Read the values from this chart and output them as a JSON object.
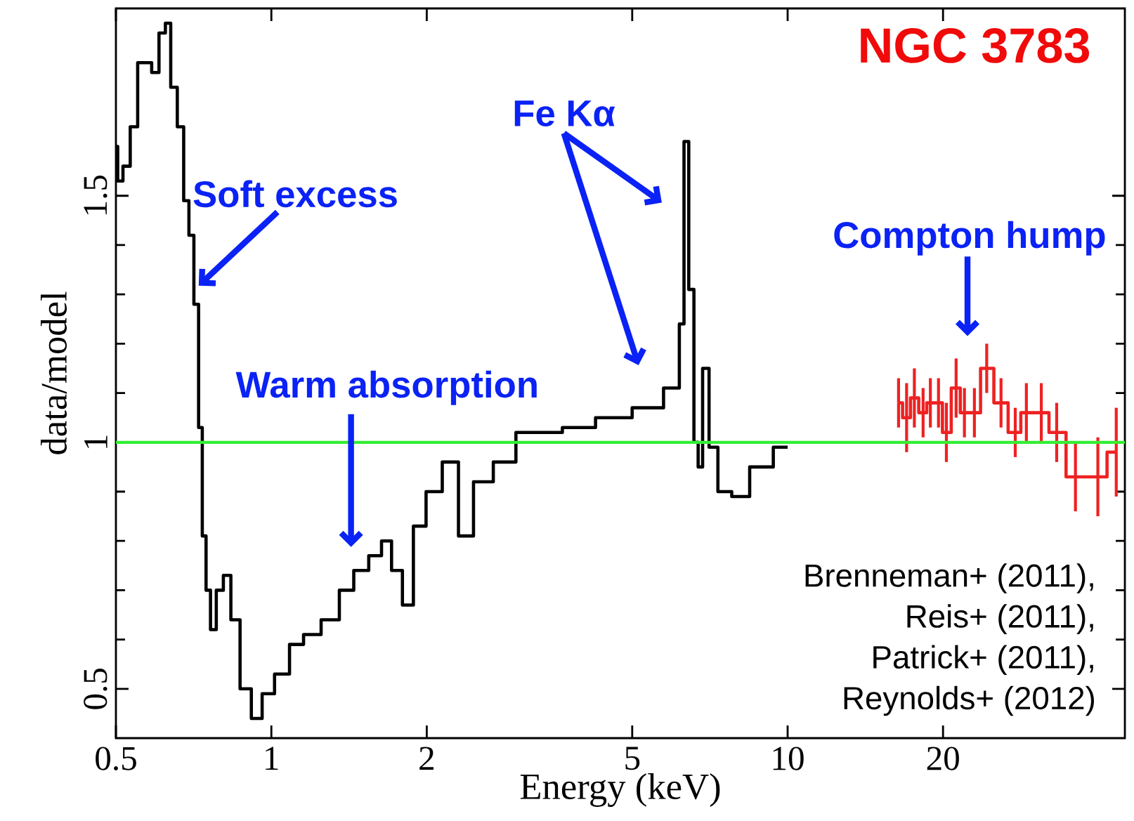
{
  "chart_data": {
    "type": "step",
    "xlabel": "Energy (keV)",
    "ylabel": "data/model",
    "log": "x",
    "xlim": [
      0.5,
      45
    ],
    "ylim": [
      0.4,
      1.88
    ],
    "xticks": [
      0.5,
      1,
      2,
      5,
      10,
      20
    ],
    "yticks": [
      0.5,
      1,
      1.5
    ],
    "series": [
      {
        "color": "#000000",
        "x": [
          0.5,
          0.508,
          0.524,
          0.542,
          0.56,
          0.578,
          0.595,
          0.617,
          0.63,
          0.647,
          0.668,
          0.685,
          0.7,
          0.716,
          0.73,
          0.74,
          0.755,
          0.77,
          0.795,
          0.82,
          0.85,
          0.89,
          0.94,
          0.98,
          1.05,
          1.12,
          1.19,
          1.31,
          1.4,
          1.49,
          1.6,
          1.67,
          1.75,
          1.84,
          1.93,
          2.06,
          2.23,
          2.38,
          2.55,
          2.84,
          3.12,
          3.43,
          3.91,
          4.61,
          5.42,
          6.1,
          6.24,
          6.36,
          6.51,
          6.66,
          6.76,
          6.93,
          7.16,
          7.5,
          8.1,
          8.8,
          10.0
        ],
        "values": [
          1.6,
          1.53,
          1.56,
          1.64,
          1.77,
          1.77,
          1.75,
          1.83,
          1.85,
          1.72,
          1.64,
          1.49,
          1.42,
          1.28,
          1.03,
          0.81,
          0.7,
          0.62,
          0.7,
          0.73,
          0.64,
          0.5,
          0.44,
          0.49,
          0.53,
          0.59,
          0.61,
          0.64,
          0.7,
          0.74,
          0.77,
          0.8,
          0.74,
          0.67,
          0.83,
          0.9,
          0.96,
          0.81,
          0.92,
          0.96,
          1.02,
          1.02,
          1.03,
          1.05,
          1.07,
          1.11,
          1.24,
          1.61,
          1.31,
          1.0,
          0.95,
          1.15,
          0.99,
          0.9,
          0.89,
          0.95,
          0.99
        ]
      },
      {
        "color": "#ee2222",
        "x": [
          16.4,
          17.0,
          17.6,
          18.3,
          18.9,
          19.6,
          20.3,
          21.2,
          22.0,
          23.0,
          24.3,
          25.9,
          27.6,
          29.0,
          31.0,
          33.2,
          36.1,
          39.9,
          43.3
        ],
        "values": [
          1.08,
          1.05,
          1.09,
          1.06,
          1.08,
          1.08,
          1.02,
          1.11,
          1.06,
          1.06,
          1.15,
          1.08,
          1.02,
          1.06,
          1.06,
          1.02,
          0.93,
          0.93,
          0.98
        ],
        "errors": [
          0.05,
          0.07,
          0.06,
          0.05,
          0.05,
          0.05,
          0.06,
          0.06,
          0.05,
          0.05,
          0.05,
          0.05,
          0.05,
          0.06,
          0.06,
          0.06,
          0.07,
          0.08,
          0.09
        ]
      }
    ],
    "ref_lines": [
      {
        "axis": "y",
        "value": 1,
        "color": "#33ee33"
      }
    ],
    "annotations": [
      "NGC 3783",
      "Soft excess",
      "Warm absorption",
      "Fe Kα",
      "Compton hump",
      "Brenneman+ (2011),",
      "Reis+ (2011),",
      "Patrick+ (2011),",
      "Reynolds+ (2012)"
    ]
  }
}
